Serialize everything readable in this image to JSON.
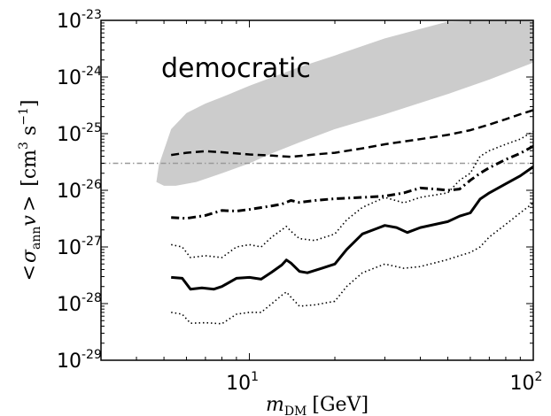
{
  "chart_data": {
    "type": "line",
    "title": "democratic",
    "xlabel": {
      "main": "m",
      "sub": "DM",
      "unit": "[GeV]"
    },
    "ylabel": {
      "open": "<",
      "sigma": "σ",
      "sub": "ann",
      "v": "v",
      "close": ">",
      "unit_open": "[cm",
      "unit_exp": "3",
      "unit_mid": " s",
      "unit_exp2": "−1",
      "unit_close": "]"
    },
    "x_scale": "log",
    "y_scale": "log",
    "xlim": [
      3,
      100
    ],
    "ylim": [
      1e-29,
      1e-23
    ],
    "x_ticks": [
      {
        "base": "10",
        "exp": "1",
        "value": 10
      },
      {
        "base": "10",
        "exp": "2",
        "value": 100
      }
    ],
    "y_ticks": [
      {
        "base": "10",
        "exp": "-29",
        "value": 1e-29
      },
      {
        "base": "10",
        "exp": "-28",
        "value": 1e-28
      },
      {
        "base": "10",
        "exp": "-27",
        "value": 1e-27
      },
      {
        "base": "10",
        "exp": "-26",
        "value": 1e-26
      },
      {
        "base": "10",
        "exp": "-25",
        "value": 1e-25
      },
      {
        "base": "10",
        "exp": "-24",
        "value": 1e-24
      },
      {
        "base": "10",
        "exp": "-23",
        "value": 1e-23
      }
    ],
    "band": {
      "color": "#cccccc",
      "upper": [
        [
          4.8,
          2.8e-26
        ],
        [
          5.3,
          1.2e-25
        ],
        [
          6,
          2.3e-25
        ],
        [
          7,
          3.4e-25
        ],
        [
          8,
          4.4e-25
        ],
        [
          10,
          7e-25
        ],
        [
          15,
          1.5e-24
        ],
        [
          20,
          2.4e-24
        ],
        [
          30,
          4.8e-24
        ],
        [
          50,
          9.5e-24
        ],
        [
          70,
          1e-23
        ],
        [
          100,
          1e-23
        ]
      ],
      "lower": [
        [
          100,
          1.8e-24
        ],
        [
          70,
          9e-25
        ],
        [
          50,
          5e-25
        ],
        [
          30,
          2.2e-25
        ],
        [
          20,
          1.2e-25
        ],
        [
          15,
          7e-26
        ],
        [
          12,
          4.5e-26
        ],
        [
          10,
          3e-26
        ],
        [
          8,
          2e-26
        ],
        [
          6.5,
          1.4e-26
        ],
        [
          5.5,
          1.2e-26
        ],
        [
          5,
          1.2e-26
        ],
        [
          4.7,
          1.4e-26
        ]
      ]
    },
    "reference_line": {
      "y": 3e-26,
      "style": "dashdot",
      "color": "#999999"
    },
    "series": [
      {
        "style": "dashed",
        "color": "#000000",
        "width": 2.5,
        "points": [
          [
            5.3,
            4.2e-26
          ],
          [
            6,
            4.6e-26
          ],
          [
            7,
            4.9e-26
          ],
          [
            8,
            4.7e-26
          ],
          [
            10,
            4.3e-26
          ],
          [
            12,
            4.1e-26
          ],
          [
            14,
            3.9e-26
          ],
          [
            17,
            4.3e-26
          ],
          [
            20,
            4.6e-26
          ],
          [
            25,
            5.5e-26
          ],
          [
            30,
            6.5e-26
          ],
          [
            40,
            8e-26
          ],
          [
            50,
            9.5e-26
          ],
          [
            60,
            1.15e-25
          ],
          [
            70,
            1.45e-25
          ],
          [
            80,
            1.8e-25
          ],
          [
            90,
            2.2e-25
          ],
          [
            100,
            2.6e-25
          ]
        ]
      },
      {
        "style": "dashdot",
        "color": "#000000",
        "width": 3,
        "points": [
          [
            5.3,
            3.3e-27
          ],
          [
            6,
            3.2e-27
          ],
          [
            7,
            3.6e-27
          ],
          [
            8,
            4.4e-27
          ],
          [
            9,
            4.3e-27
          ],
          [
            10,
            4.6e-27
          ],
          [
            12,
            5.3e-27
          ],
          [
            13,
            5.7e-27
          ],
          [
            14,
            6.6e-27
          ],
          [
            15,
            6.1e-27
          ],
          [
            17,
            6.6e-27
          ],
          [
            20,
            7.1e-27
          ],
          [
            25,
            7.5e-27
          ],
          [
            30,
            7.9e-27
          ],
          [
            35,
            9e-27
          ],
          [
            40,
            1.1e-26
          ],
          [
            45,
            1.05e-26
          ],
          [
            50,
            1e-26
          ],
          [
            55,
            1.05e-26
          ],
          [
            60,
            1.5e-26
          ],
          [
            65,
            2e-26
          ],
          [
            70,
            2.5e-26
          ],
          [
            80,
            3.5e-26
          ],
          [
            90,
            4.5e-26
          ],
          [
            100,
            6e-26
          ]
        ]
      },
      {
        "style": "solid",
        "color": "#000000",
        "width": 3,
        "points": [
          [
            5.3,
            2.9e-28
          ],
          [
            5.8,
            2.8e-28
          ],
          [
            6.2,
            1.8e-28
          ],
          [
            6.8,
            1.9e-28
          ],
          [
            7.5,
            1.8e-28
          ],
          [
            8,
            2e-28
          ],
          [
            9,
            2.8e-28
          ],
          [
            10,
            2.9e-28
          ],
          [
            11,
            2.7e-28
          ],
          [
            12,
            3.6e-28
          ],
          [
            13,
            4.8e-28
          ],
          [
            13.5,
            5.9e-28
          ],
          [
            14,
            5.2e-28
          ],
          [
            15,
            3.7e-28
          ],
          [
            16,
            3.5e-28
          ],
          [
            18,
            4.2e-28
          ],
          [
            20,
            5e-28
          ],
          [
            22,
            9e-28
          ],
          [
            25,
            1.7e-27
          ],
          [
            28,
            2.1e-27
          ],
          [
            30,
            2.4e-27
          ],
          [
            33,
            2.2e-27
          ],
          [
            36,
            1.8e-27
          ],
          [
            40,
            2.2e-27
          ],
          [
            50,
            2.8e-27
          ],
          [
            55,
            3.5e-27
          ],
          [
            60,
            4e-27
          ],
          [
            65,
            7e-27
          ],
          [
            70,
            9e-27
          ],
          [
            80,
            1.3e-26
          ],
          [
            90,
            1.8e-26
          ],
          [
            100,
            2.6e-26
          ]
        ]
      },
      {
        "style": "dotted",
        "color": "#000000",
        "width": 1.6,
        "points": [
          [
            5.3,
            1.1e-27
          ],
          [
            5.8,
            1e-27
          ],
          [
            6.2,
            6.5e-28
          ],
          [
            7,
            7e-28
          ],
          [
            8,
            6.5e-28
          ],
          [
            9,
            1e-27
          ],
          [
            10,
            1.1e-27
          ],
          [
            11,
            1e-27
          ],
          [
            12,
            1.5e-27
          ],
          [
            13,
            2e-27
          ],
          [
            13.5,
            2.3e-27
          ],
          [
            14,
            1.9e-27
          ],
          [
            15,
            1.4e-27
          ],
          [
            17,
            1.3e-27
          ],
          [
            20,
            1.7e-27
          ],
          [
            22,
            3e-27
          ],
          [
            25,
            5e-27
          ],
          [
            30,
            7.5e-27
          ],
          [
            35,
            6e-27
          ],
          [
            40,
            7.5e-27
          ],
          [
            50,
            9e-27
          ],
          [
            55,
            1.5e-26
          ],
          [
            60,
            2e-26
          ],
          [
            65,
            4e-26
          ],
          [
            70,
            5e-26
          ],
          [
            80,
            6.5e-26
          ],
          [
            90,
            8e-26
          ],
          [
            100,
            1.1e-25
          ]
        ]
      },
      {
        "style": "dotted",
        "color": "#000000",
        "width": 1.6,
        "points": [
          [
            5.3,
            7e-29
          ],
          [
            5.8,
            6.5e-29
          ],
          [
            6.2,
            4.5e-29
          ],
          [
            7,
            4.6e-29
          ],
          [
            8,
            4.4e-29
          ],
          [
            9,
            6.5e-29
          ],
          [
            10,
            7e-29
          ],
          [
            11,
            7e-29
          ],
          [
            12,
            1e-28
          ],
          [
            13,
            1.4e-28
          ],
          [
            13.5,
            1.6e-28
          ],
          [
            14,
            1.3e-28
          ],
          [
            15,
            9e-29
          ],
          [
            17,
            9.5e-29
          ],
          [
            20,
            1.1e-28
          ],
          [
            22,
            2e-28
          ],
          [
            25,
            3.5e-28
          ],
          [
            30,
            5e-28
          ],
          [
            35,
            4.2e-28
          ],
          [
            40,
            4.5e-28
          ],
          [
            50,
            6e-28
          ],
          [
            55,
            7e-28
          ],
          [
            60,
            8e-28
          ],
          [
            65,
            1e-27
          ],
          [
            70,
            1.5e-27
          ],
          [
            80,
            2.5e-27
          ],
          [
            90,
            4e-27
          ],
          [
            100,
            6e-27
          ]
        ]
      }
    ]
  }
}
